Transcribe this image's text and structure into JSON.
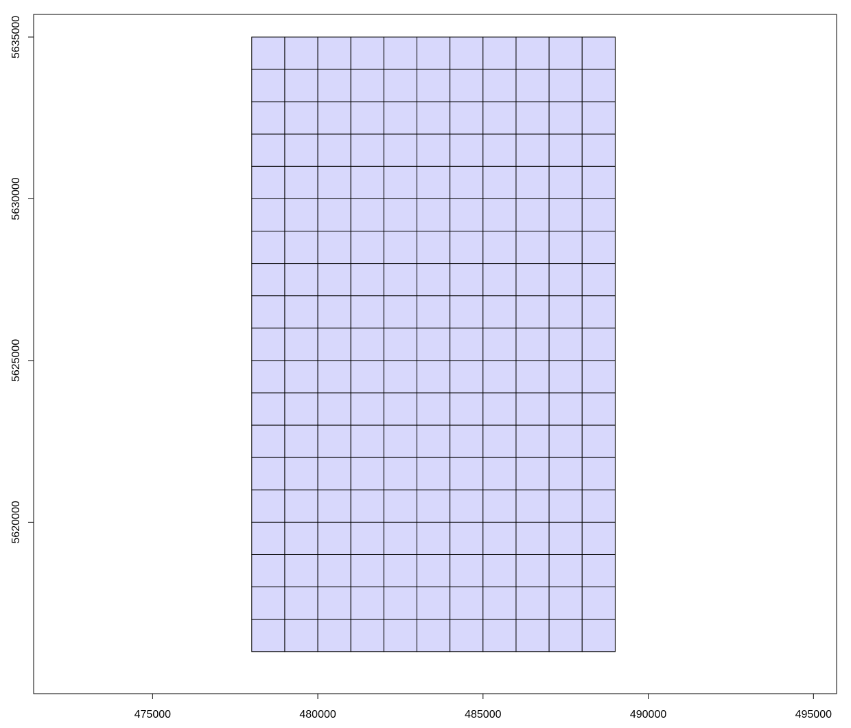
{
  "chart_data": {
    "type": "heatmap",
    "title": "",
    "xlabel": "",
    "ylabel": "",
    "xlim": [
      471400,
      495700
    ],
    "ylim": [
      5614700,
      5635700
    ],
    "x_ticks": [
      475000,
      480000,
      485000,
      490000,
      495000
    ],
    "x_tick_labels": [
      "475000",
      "480000",
      "485000",
      "490000",
      "495000"
    ],
    "y_ticks": [
      5620000,
      5625000,
      5630000,
      5635000
    ],
    "y_tick_labels": [
      "5620000",
      "5625000",
      "5630000",
      "5635000"
    ],
    "grid": {
      "x_min": 478000,
      "x_max": 489000,
      "y_min": 5616000,
      "y_max": 5635000,
      "cell_size": 1000,
      "columns": 11,
      "rows": 19
    },
    "cell_fill": "#d8d8fc",
    "cell_stroke": "#000000",
    "legend": "none",
    "grid_lines_background": false
  }
}
